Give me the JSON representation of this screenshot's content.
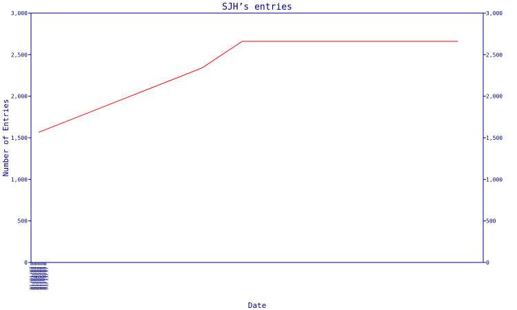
{
  "chart_data": {
    "type": "line",
    "title": "SJH’s entries",
    "xlabel": "Date",
    "ylabel": "Number of Entries",
    "x_ticks": [
      "01/01/07",
      "01/02/07",
      "01/03/07",
      "01/04/07",
      "01/05/07",
      "01/06/07",
      "01/07/07",
      "01/08/07",
      "01/09/07",
      "01/10/07",
      "01/11/07"
    ],
    "y_ticks": [
      "0",
      "500",
      "1,000",
      "1,500",
      "2,000",
      "2,500",
      "3,000"
    ],
    "y_ticks_right": [
      "0",
      "500",
      "1,000",
      "1,500",
      "2,000",
      "2,500",
      "3,000"
    ],
    "xlim": [
      "2007-01-01",
      "2007-11-01"
    ],
    "ylim": [
      0,
      3000
    ],
    "grid": false,
    "series": [
      {
        "color": "#ff0000",
        "x": [
          "2007-01-06",
          "2007-04-26",
          "2007-05-23",
          "2007-10-15"
        ],
        "y": [
          1565,
          2340,
          2660,
          2660
        ]
      }
    ]
  },
  "colors": {
    "axis": "#000080",
    "text": "#000080",
    "line": "#ff0000"
  }
}
